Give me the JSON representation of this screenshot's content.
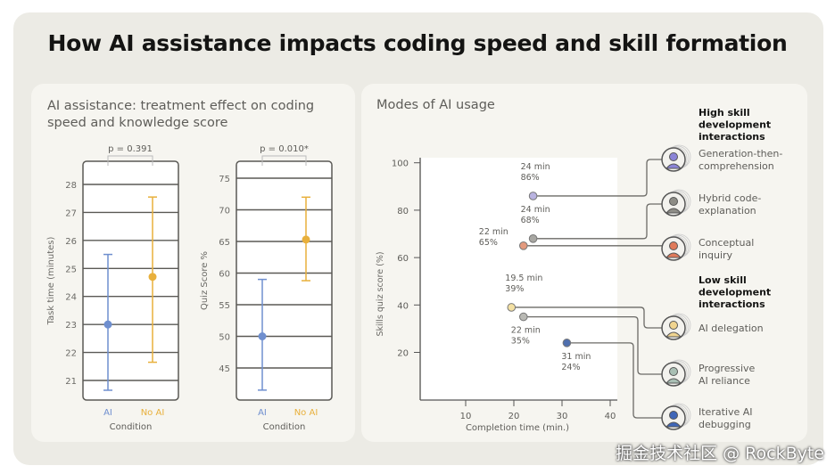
{
  "title": "How AI assistance impacts coding speed and skill formation",
  "watermark": "掘金技术社区 @ RockByte",
  "colors": {
    "ai": "#6f8fcf",
    "noai": "#e8b03c",
    "grid": "#5a5955"
  },
  "chart_data": [
    {
      "type": "errorbar",
      "panel_title": "AI assistance: treatment effect on coding speed and knowledge score",
      "title": "p = 0.391",
      "xlabel": "Condition",
      "ylabel": "Task time (minutes)",
      "categories": [
        "AI",
        "No AI"
      ],
      "means": [
        23.0,
        24.7
      ],
      "ci_low": [
        20.65,
        21.65
      ],
      "ci_high": [
        25.5,
        27.55
      ],
      "yticks": [
        21,
        22,
        23,
        24,
        25,
        26,
        27,
        28
      ],
      "ylim": [
        20.2,
        28.8
      ]
    },
    {
      "type": "errorbar",
      "title": "p = 0.010*",
      "xlabel": "Condition",
      "ylabel": "Quiz Score %",
      "categories": [
        "AI",
        "No AI"
      ],
      "means": [
        50,
        65.3
      ],
      "ci_low": [
        41.5,
        58.8
      ],
      "ci_high": [
        59,
        72
      ],
      "yticks": [
        45,
        50,
        55,
        60,
        65,
        70,
        75
      ],
      "ylim": [
        40,
        77.5
      ]
    },
    {
      "type": "scatter",
      "title": "Modes of AI usage",
      "xlabel": "Completion time (min.)",
      "ylabel": "Skills quiz score (%)",
      "xticks": [
        10,
        20,
        30,
        40
      ],
      "yticks": [
        20,
        40,
        60,
        80,
        100
      ],
      "xlim": [
        0,
        42
      ],
      "ylim": [
        0,
        101
      ],
      "groups": [
        "High skill development interactions",
        "Low skill development interactions"
      ],
      "points": [
        {
          "name": "Generation-then-comprehension",
          "group": 0,
          "x": 24,
          "y": 86,
          "label1": "24 min",
          "label2": "86%",
          "color": "#b9b3e0",
          "avatar": "#8a83d6"
        },
        {
          "name": "Hybrid code-explanation",
          "group": 0,
          "x": 24,
          "y": 68,
          "label1": "24 min",
          "label2": "68%",
          "color": "#a8a7a2",
          "avatar": "#8d8c86"
        },
        {
          "name": "Conceptual inquiry",
          "group": 0,
          "x": 22,
          "y": 65,
          "label1": "22 min",
          "label2": "65%",
          "color": "#e39a7e",
          "avatar": "#e07a5a"
        },
        {
          "name": "AI delegation",
          "group": 1,
          "x": 19.5,
          "y": 39,
          "label1": "19.5 min",
          "label2": "39%",
          "color": "#f3e0a3",
          "avatar": "#f0d48f"
        },
        {
          "name": "Progressive AI reliance",
          "group": 1,
          "x": 22,
          "y": 35,
          "label1": "22 min",
          "label2": "35%",
          "color": "#b9b9b4",
          "avatar": "#a9bfb4"
        },
        {
          "name": "Iterative AI debugging",
          "group": 1,
          "x": 31,
          "y": 24,
          "label1": "31 min",
          "label2": "24%",
          "color": "#4f6fae",
          "avatar": "#3f66b8"
        }
      ]
    }
  ]
}
